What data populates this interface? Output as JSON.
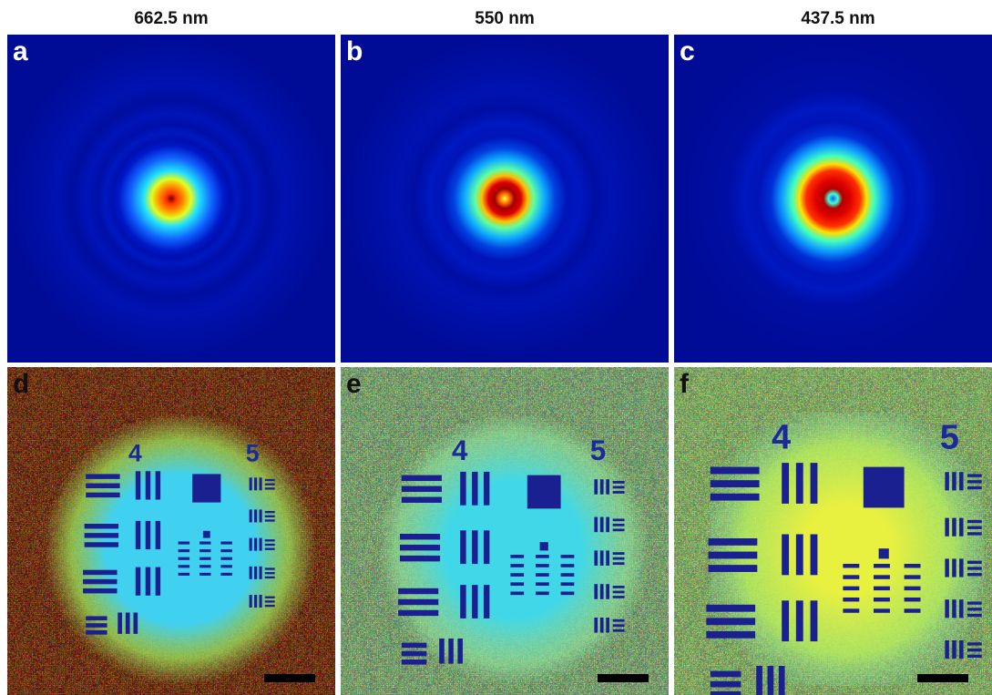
{
  "column_titles": [
    "662.5 nm",
    "550 nm",
    "437.5 nm"
  ],
  "panels": [
    {
      "label": "a"
    },
    {
      "label": "b"
    },
    {
      "label": "c"
    },
    {
      "label": "d"
    },
    {
      "label": "e"
    },
    {
      "label": "f"
    }
  ],
  "target_labels": [
    "4",
    "5"
  ]
}
